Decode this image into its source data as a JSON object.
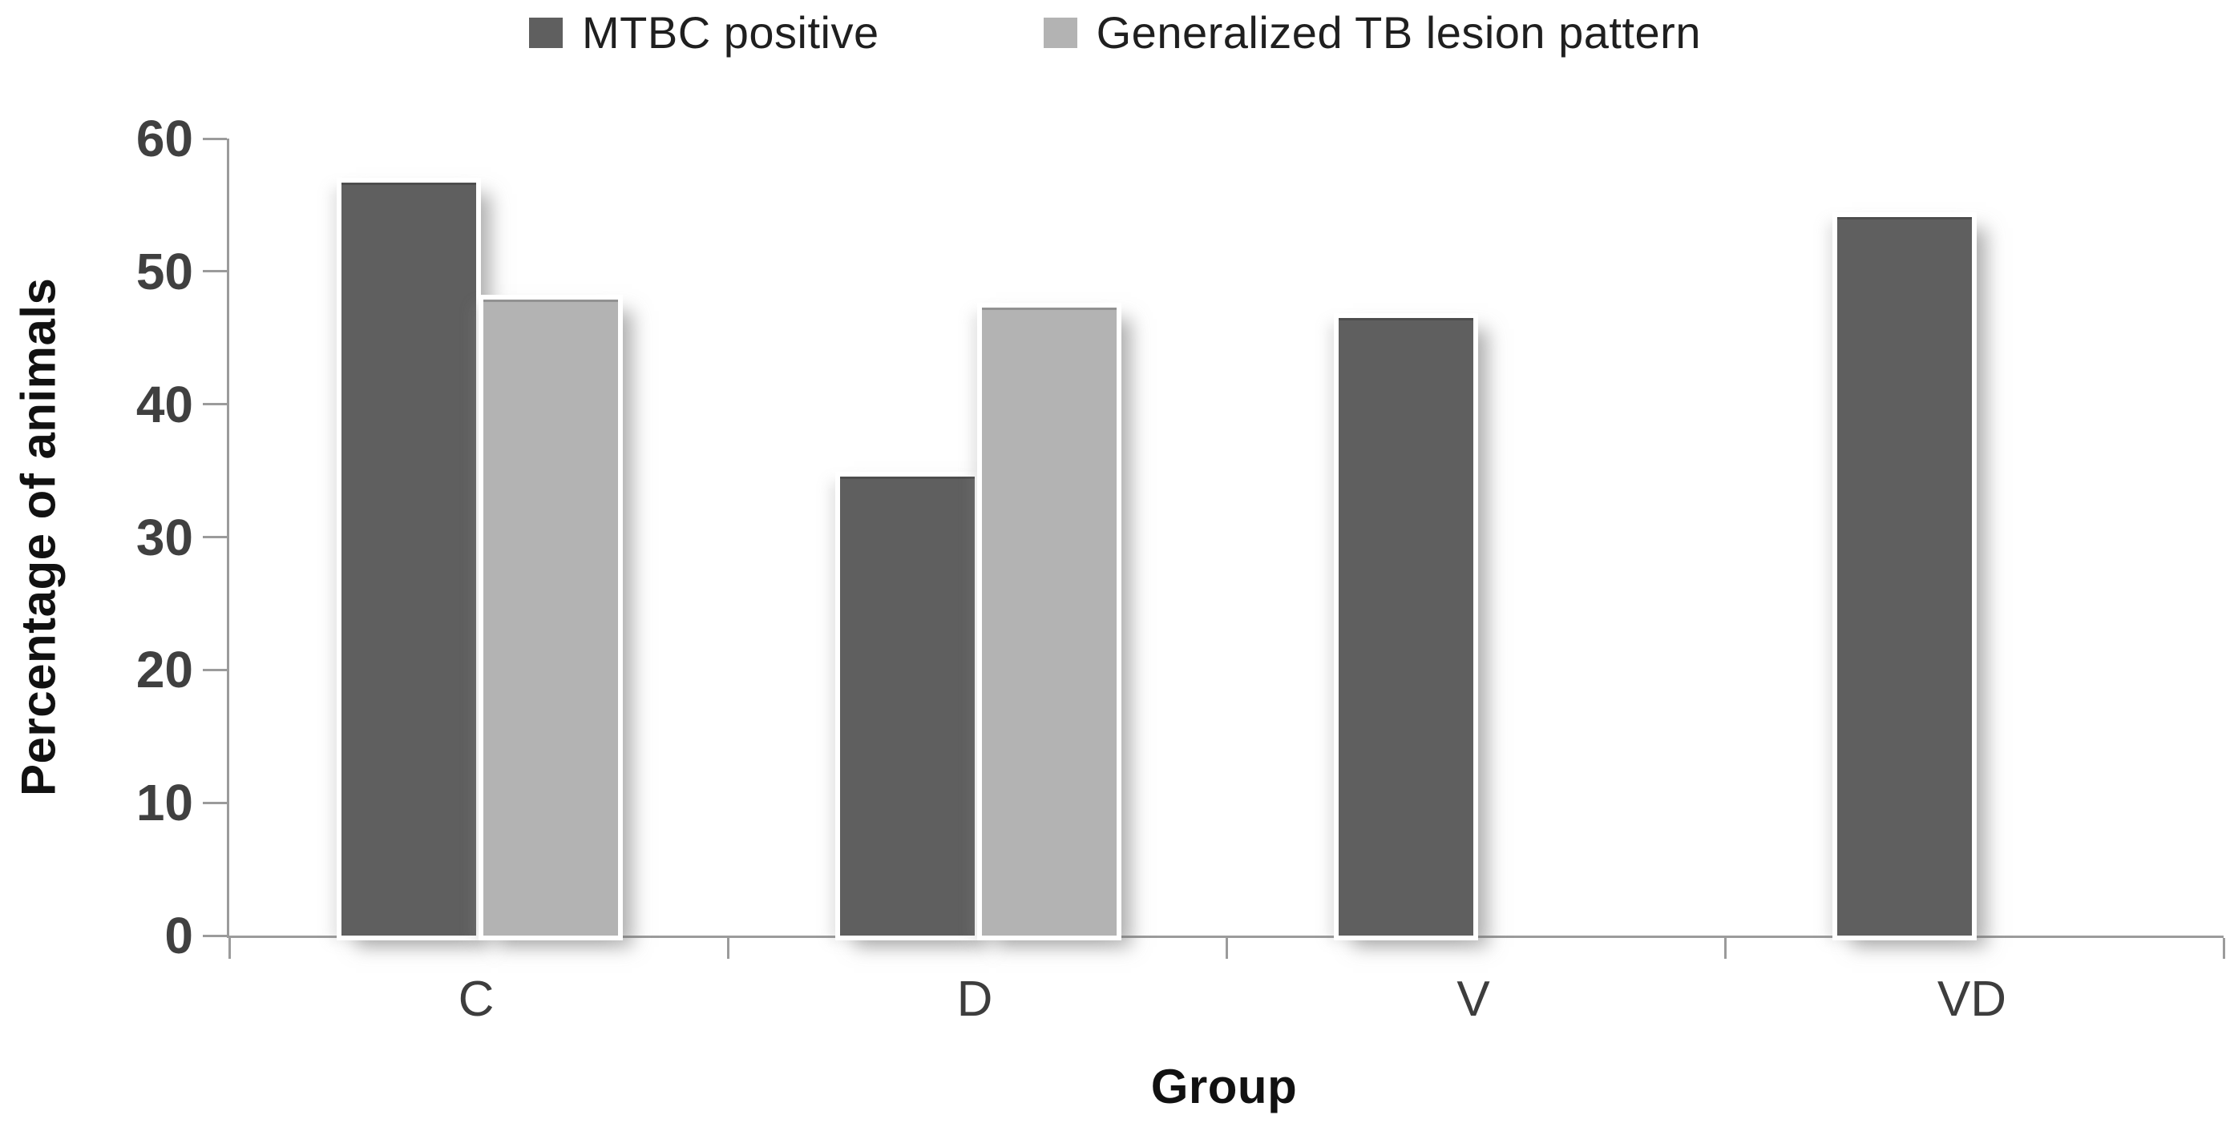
{
  "chart_data": {
    "type": "bar",
    "title": "",
    "categories": [
      "C",
      "D",
      "V",
      "VD"
    ],
    "series": [
      {
        "name": "MTBC positive",
        "color": "#5f5f5f",
        "values": [
          56.5,
          34.4,
          46.3,
          53.9
        ]
      },
      {
        "name": "Generalized TB lesion pattern",
        "color": "#b3b3b3",
        "values": [
          47.7,
          47.1,
          null,
          null
        ]
      }
    ],
    "xlabel": "Group",
    "ylabel": "Percentage of animals",
    "ylim": [
      0,
      60
    ],
    "yticks": [
      0,
      10,
      20,
      30,
      40,
      50,
      60
    ],
    "grid": false,
    "legend_position": "top",
    "axis_line_color": "#9b9b9b"
  }
}
